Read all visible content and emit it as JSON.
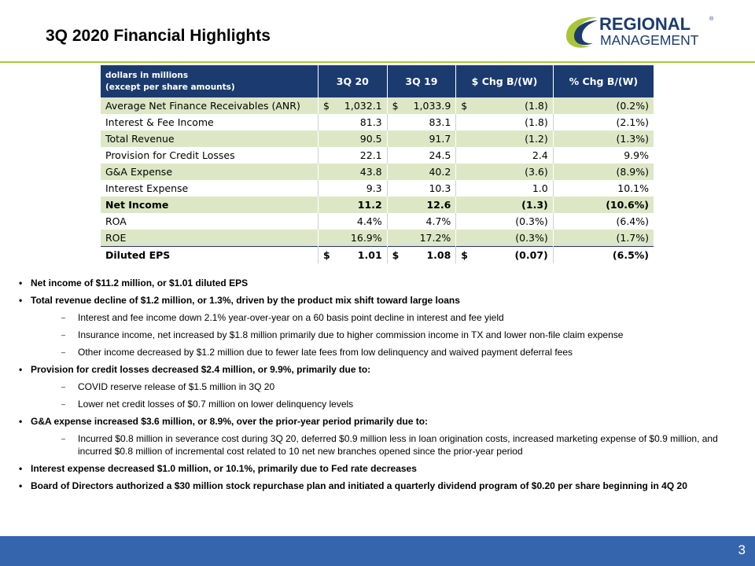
{
  "title": "3Q 2020 Financial Highlights",
  "logo": {
    "line1": "REGIONAL",
    "line2": "MANAGEMENT",
    "mark": "®"
  },
  "table": {
    "header": {
      "label_line1": "dollars in millions",
      "label_line2": "(except per share amounts)",
      "cols": [
        "3Q 20",
        "3Q 19",
        "$ Chg B/(W)",
        "% Chg B/(W)"
      ]
    },
    "rows": [
      {
        "label": "Average Net Finance Receivables (ANR)",
        "c1": "1,032.1",
        "c2": "1,033.9",
        "c3": "(1.8)",
        "c4": "(0.2%)",
        "cur": "$",
        "bold": false
      },
      {
        "label": "Interest & Fee Income",
        "c1": "81.3",
        "c2": "83.1",
        "c3": "(1.8)",
        "c4": "(2.1%)",
        "cur": "",
        "bold": false
      },
      {
        "label": "Total Revenue",
        "c1": "90.5",
        "c2": "91.7",
        "c3": "(1.2)",
        "c4": "(1.3%)",
        "cur": "",
        "bold": false
      },
      {
        "label": "Provision for Credit Losses",
        "c1": "22.1",
        "c2": "24.5",
        "c3": "2.4",
        "c4": "9.9%",
        "cur": "",
        "bold": false
      },
      {
        "label": "G&A Expense",
        "c1": "43.8",
        "c2": "40.2",
        "c3": "(3.6)",
        "c4": "(8.9%)",
        "cur": "",
        "bold": false
      },
      {
        "label": "Interest Expense",
        "c1": "9.3",
        "c2": "10.3",
        "c3": "1.0",
        "c4": "10.1%",
        "cur": "",
        "bold": false
      },
      {
        "label": "Net Income",
        "c1": "11.2",
        "c2": "12.6",
        "c3": "(1.3)",
        "c4": "(10.6%)",
        "cur": "",
        "bold": true
      },
      {
        "label": "ROA",
        "c1": "4.4%",
        "c2": "4.7%",
        "c3": "(0.3%)",
        "c4": "(6.4%)",
        "cur": "",
        "bold": false
      },
      {
        "label": "ROE",
        "c1": "16.9%",
        "c2": "17.2%",
        "c3": "(0.3%)",
        "c4": "(1.7%)",
        "cur": "",
        "bold": false
      },
      {
        "label": "Diluted EPS",
        "c1": "1.01",
        "c2": "1.08",
        "c3": "(0.07)",
        "c4": "(6.5%)",
        "cur": "$",
        "bold": true
      }
    ]
  },
  "bullets": [
    {
      "text": "Net income of $11.2  million, or $1.01  diluted EPS",
      "subs": []
    },
    {
      "text": "Total revenue decline of $1.2 million, or 1.3%, driven by the product mix shift toward large loans",
      "subs": [
        "Interest and fee income down 2.1% year-over-year on a 60 basis point decline in interest and fee yield",
        "Insurance income, net increased by $1.8 million primarily due to higher commission income in TX and lower non-file claim expense",
        "Other income decreased by $1.2 million due to fewer late fees from low delinquency and waived payment deferral fees"
      ]
    },
    {
      "text": "Provision for credit losses decreased $2.4 million, or 9.9%, primarily due to:",
      "subs": [
        "COVID reserve release of $1.5 million in 3Q 20",
        "Lower net credit losses of $0.7 million on lower delinquency levels"
      ]
    },
    {
      "text": "G&A expense increased $3.6 million, or 8.9%, over the prior-year period primarily due to:",
      "subs": [
        "Incurred $0.8 million in severance cost during 3Q 20,  deferred $0.9 million less in loan origination costs, increased marketing expense of $0.9 million, and incurred $0.8 million of incremental cost related to 10 net new branches opened since the prior-year period"
      ]
    },
    {
      "text": "Interest expense decreased $1.0 million, or 10.1%,  primarily due to Fed rate decreases",
      "subs": []
    },
    {
      "text": "Board of Directors authorized a  $30 million stock repurchase plan and initiated a  quarterly dividend program of $0.20  per share beginning in 4Q 20",
      "subs": []
    }
  ],
  "page_number": "3",
  "colors": {
    "navy": "#1b3b6e",
    "green_band": "#dde7c6",
    "accent_green": "#a8c538",
    "footer_blue": "#3566ad"
  }
}
